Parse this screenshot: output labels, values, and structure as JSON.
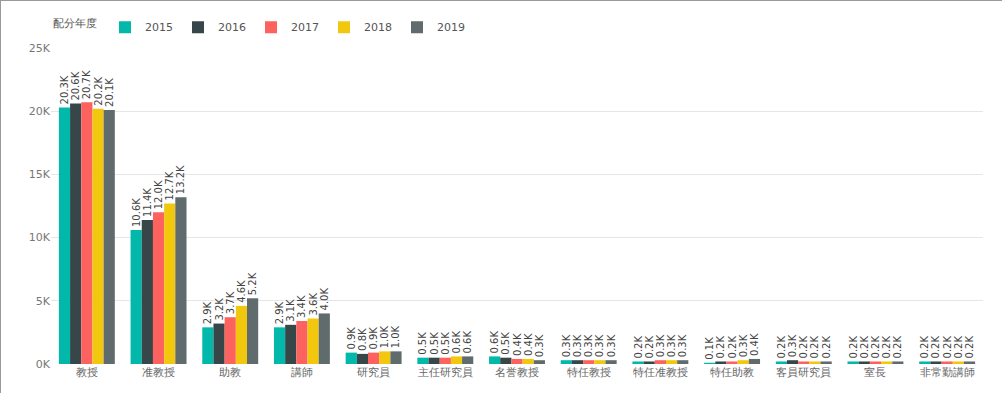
{
  "chart_data": {
    "type": "bar",
    "legend_title": "配分年度",
    "legend": "top-left",
    "grid": true,
    "data_labels": true,
    "categories": [
      "教授",
      "准教授",
      "助教",
      "講師",
      "研究員",
      "主任研究員",
      "名誉教授",
      "特任教授",
      "特任准教授",
      "特任助教",
      "客員研究員",
      "室長",
      "非常勤講師"
    ],
    "ylim": [
      0,
      25000
    ],
    "yticks": [
      {
        "value": 0,
        "label": "0K"
      },
      {
        "value": 5000,
        "label": "5K"
      },
      {
        "value": 10000,
        "label": "10K"
      },
      {
        "value": 15000,
        "label": "15K"
      },
      {
        "value": 20000,
        "label": "20K"
      },
      {
        "value": 25000,
        "label": "25K"
      }
    ],
    "series": [
      {
        "name": "2015",
        "color": "#01B8AA",
        "values": [
          20300,
          10600,
          2900,
          2900,
          900,
          500,
          600,
          300,
          200,
          100,
          200,
          200,
          200
        ],
        "value_labels": [
          "20.3K",
          "10.6K",
          "2.9K",
          "2.9K",
          "0.9K",
          "0.5K",
          "0.6K",
          "0.3K",
          "0.2K",
          "0.1K",
          "0.2K",
          "0.2K",
          "0.2K"
        ]
      },
      {
        "name": "2016",
        "color": "#374649",
        "values": [
          20600,
          11400,
          3200,
          3100,
          800,
          500,
          500,
          300,
          200,
          200,
          300,
          200,
          200
        ],
        "value_labels": [
          "20.6K",
          "11.4K",
          "3.2K",
          "3.1K",
          "0.8K",
          "0.5K",
          "0.5K",
          "0.3K",
          "0.2K",
          "0.2K",
          "0.3K",
          "0.2K",
          "0.2K"
        ]
      },
      {
        "name": "2017",
        "color": "#FD625E",
        "values": [
          20700,
          12000,
          3700,
          3400,
          900,
          500,
          400,
          300,
          300,
          200,
          200,
          200,
          200
        ],
        "value_labels": [
          "20.7K",
          "12.0K",
          "3.7K",
          "3.4K",
          "0.9K",
          "0.5K",
          "0.4K",
          "0.3K",
          "0.3K",
          "0.2K",
          "0.2K",
          "0.2K",
          "0.2K"
        ]
      },
      {
        "name": "2018",
        "color": "#F2C80F",
        "values": [
          20200,
          12700,
          4600,
          3600,
          1000,
          600,
          400,
          300,
          300,
          300,
          200,
          200,
          200
        ],
        "value_labels": [
          "20.2K",
          "12.7K",
          "4.6K",
          "3.6K",
          "1.0K",
          "0.6K",
          "0.4K",
          "0.3K",
          "0.3K",
          "0.3K",
          "0.2K",
          "0.2K",
          "0.2K"
        ]
      },
      {
        "name": "2019",
        "color": "#5F6B6D",
        "values": [
          20100,
          13200,
          5200,
          4000,
          1000,
          600,
          300,
          300,
          300,
          400,
          200,
          200,
          200
        ],
        "value_labels": [
          "20.1K",
          "13.2K",
          "5.2K",
          "4.0K",
          "1.0K",
          "0.6K",
          "0.3K",
          "0.3K",
          "0.3K",
          "0.4K",
          "0.2K",
          "0.2K",
          "0.2K"
        ]
      }
    ]
  }
}
